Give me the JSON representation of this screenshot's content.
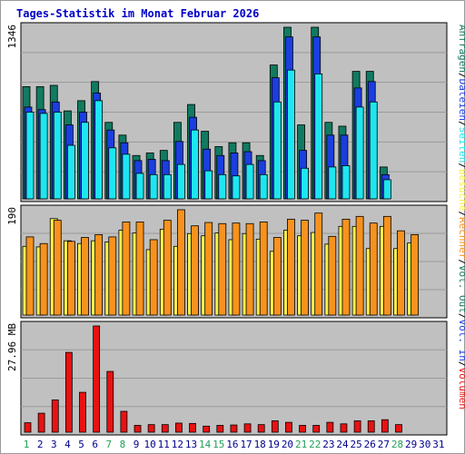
{
  "title": "Tages-Statistik im Monat Februar 2026",
  "colors": {
    "title": "#0000c8",
    "panel_bg": "#c0c0c0",
    "grid": "#9a9a9a",
    "anfragen": "#117a60",
    "dateien": "#1a3ee0",
    "seiten": "#1ee6f0",
    "besuche": "#f8f04a",
    "rechner": "#f7921e",
    "volumen": "#e81212",
    "weekend": "#22a05a",
    "weekday": "#00008c"
  },
  "scales": {
    "top_max_label": "1346",
    "mid_max_label": "190",
    "bottom_max_label": "27.96 MB"
  },
  "legend_right": {
    "top": [
      {
        "key": "anfragen",
        "text": "Anfragen"
      },
      {
        "key": "sep",
        "text": "/"
      },
      {
        "key": "dateien",
        "text": "Dateien"
      },
      {
        "key": "sep",
        "text": "/"
      },
      {
        "key": "seiten",
        "text": "Seiten"
      },
      {
        "key": "sep",
        "text": "/"
      },
      {
        "key": "besuche",
        "text": "Besuche"
      },
      {
        "key": "sep",
        "text": "/"
      },
      {
        "key": "rechner",
        "text": "Rechner"
      },
      {
        "key": "sep",
        "text": "/"
      },
      {
        "key": "anfragen",
        "text": "Vol. Out"
      },
      {
        "key": "sep",
        "text": "/"
      },
      {
        "key": "dateien",
        "text": "Vol. In"
      },
      {
        "key": "sep",
        "text": "/"
      },
      {
        "key": "volumen",
        "text": "Volumen"
      }
    ]
  },
  "chart_data": {
    "type": "bar",
    "days": [
      "1",
      "2",
      "3",
      "4",
      "5",
      "6",
      "7",
      "8",
      "9",
      "10",
      "11",
      "12",
      "13",
      "14",
      "15",
      "16",
      "17",
      "18",
      "19",
      "20",
      "21",
      "22",
      "23",
      "24",
      "25",
      "26",
      "27",
      "28",
      "29",
      "30",
      "31"
    ],
    "weekend_days": [
      1,
      7,
      8,
      14,
      15,
      21,
      22,
      28
    ],
    "top": {
      "ylim": [
        0,
        1346
      ],
      "series": [
        {
          "name": "Anfragen",
          "values": [
            880,
            880,
            890,
            690,
            770,
            920,
            600,
            500,
            340,
            360,
            380,
            600,
            740,
            530,
            410,
            440,
            440,
            340,
            1050,
            1346,
            580,
            1346,
            600,
            570,
            1000,
            1000,
            250,
            null,
            null,
            null,
            null
          ]
        },
        {
          "name": "Dateien",
          "values": [
            720,
            700,
            760,
            580,
            680,
            830,
            540,
            440,
            300,
            310,
            300,
            450,
            640,
            390,
            340,
            360,
            370,
            300,
            950,
            1270,
            380,
            1270,
            500,
            500,
            870,
            920,
            190,
            null,
            null,
            null,
            null
          ]
        },
        {
          "name": "Seiten",
          "values": [
            680,
            670,
            680,
            420,
            600,
            770,
            400,
            350,
            200,
            190,
            190,
            270,
            540,
            220,
            190,
            180,
            270,
            190,
            760,
            1010,
            240,
            980,
            250,
            260,
            720,
            760,
            150,
            null,
            null,
            null,
            null
          ]
        }
      ]
    },
    "mid": {
      "ylim": [
        0,
        190
      ],
      "series": [
        {
          "name": "Besuche",
          "values": [
            124,
            123,
            174,
            134,
            129,
            134,
            132,
            153,
            148,
            118,
            155,
            124,
            147,
            143,
            148,
            136,
            147,
            137,
            115,
            153,
            143,
            149,
            128,
            160,
            160,
            120,
            160,
            120,
            130,
            null,
            null
          ]
        },
        {
          "name": "Rechner",
          "values": [
            141,
            129,
            171,
            133,
            140,
            145,
            141,
            168,
            168,
            136,
            171,
            190,
            161,
            167,
            165,
            166,
            165,
            168,
            140,
            173,
            171,
            184,
            142,
            173,
            178,
            166,
            178,
            152,
            145,
            null,
            null
          ]
        }
      ]
    },
    "bottom": {
      "ylabel": "27.96 MB",
      "ylim": [
        0,
        27.96
      ],
      "series": [
        {
          "name": "Volumen",
          "values": [
            2.5,
            5.0,
            8.5,
            21.0,
            10.5,
            27.96,
            16.0,
            5.5,
            1.8,
            2.0,
            2.0,
            2.4,
            2.3,
            1.6,
            1.8,
            1.9,
            2.2,
            2.0,
            3.0,
            2.6,
            1.8,
            1.8,
            2.6,
            2.2,
            3.0,
            3.0,
            3.3,
            2.0,
            null,
            null,
            null
          ]
        }
      ]
    }
  }
}
